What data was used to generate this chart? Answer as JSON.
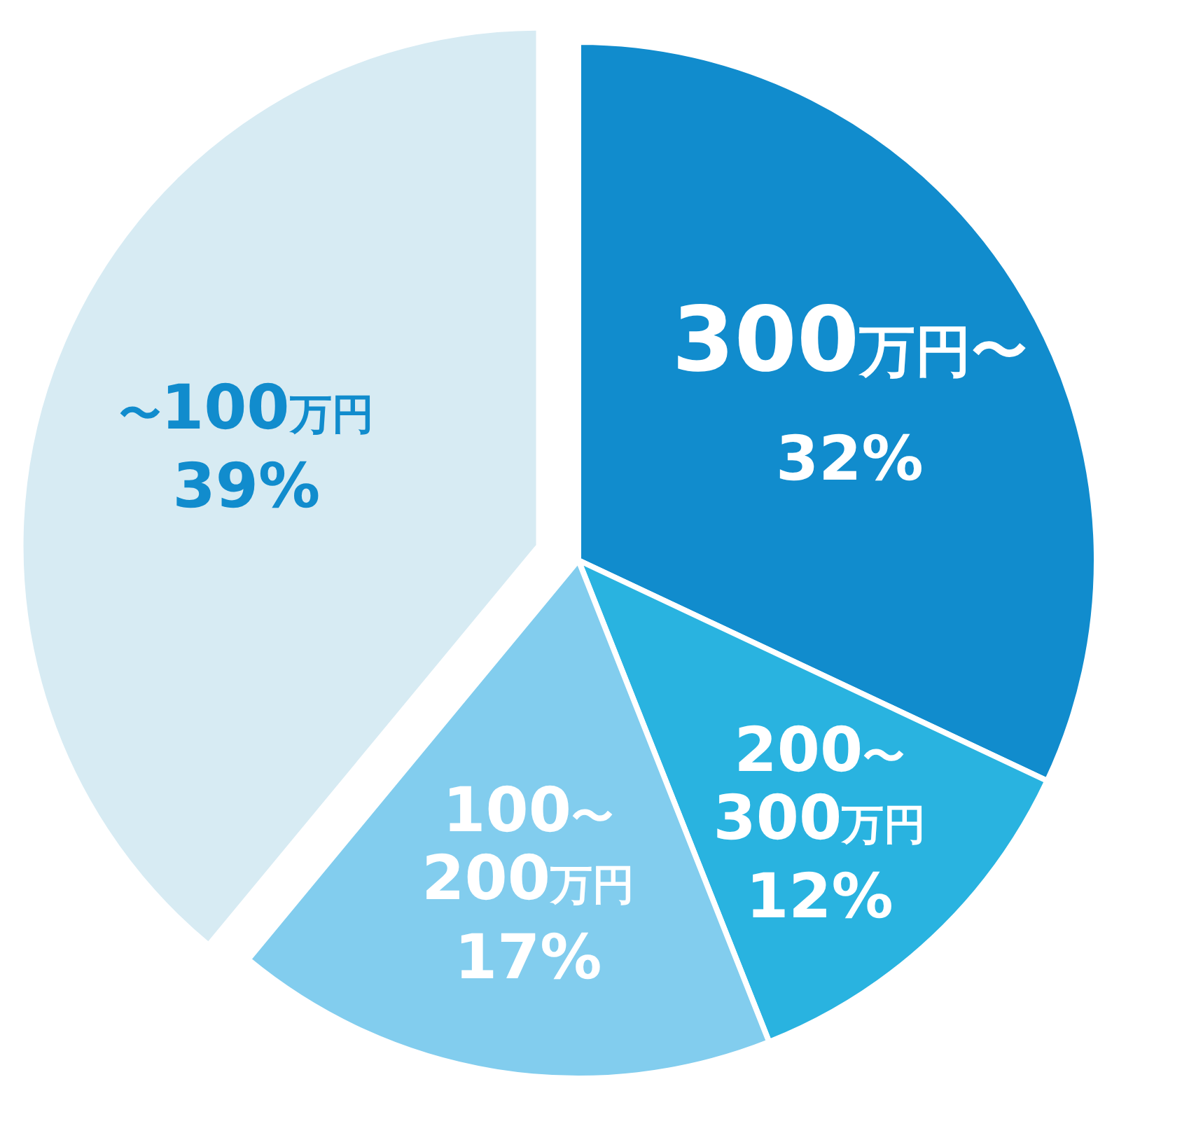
{
  "chart_data": {
    "type": "pie",
    "categories": [
      "300万円〜",
      "200〜300万円",
      "100〜200万円",
      "〜100万円"
    ],
    "values": [
      32,
      12,
      17,
      39
    ],
    "colors": [
      "#118ccd",
      "#29b3e0",
      "#82cdee",
      "#d7ebf3"
    ],
    "value_labels": [
      "32%",
      "12%",
      "17%",
      "39%"
    ]
  }
}
